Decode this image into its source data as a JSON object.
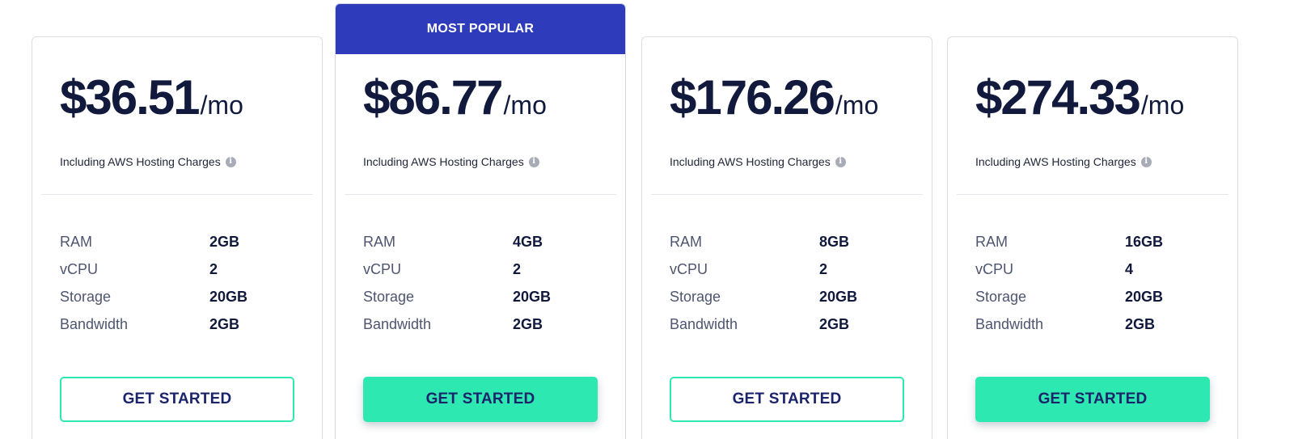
{
  "plans": [
    {
      "price": "$36.51",
      "period": "/mo",
      "note": "Including AWS Hosting Charges",
      "specs": [
        {
          "label": "RAM",
          "value": "2GB"
        },
        {
          "label": "vCPU",
          "value": "2"
        },
        {
          "label": "Storage",
          "value": "20GB"
        },
        {
          "label": "Bandwidth",
          "value": "2GB"
        }
      ],
      "cta": "GET STARTED"
    },
    {
      "banner": "MOST POPULAR",
      "price": "$86.77",
      "period": "/mo",
      "note": "Including AWS Hosting Charges",
      "specs": [
        {
          "label": "RAM",
          "value": "4GB"
        },
        {
          "label": "vCPU",
          "value": "2"
        },
        {
          "label": "Storage",
          "value": "20GB"
        },
        {
          "label": "Bandwidth",
          "value": "2GB"
        }
      ],
      "cta": "GET STARTED"
    },
    {
      "price": "$176.26",
      "period": "/mo",
      "note": "Including AWS Hosting Charges",
      "specs": [
        {
          "label": "RAM",
          "value": "8GB"
        },
        {
          "label": "vCPU",
          "value": "2"
        },
        {
          "label": "Storage",
          "value": "20GB"
        },
        {
          "label": "Bandwidth",
          "value": "2GB"
        }
      ],
      "cta": "GET STARTED"
    },
    {
      "price": "$274.33",
      "period": "/mo",
      "note": "Including AWS Hosting Charges",
      "specs": [
        {
          "label": "RAM",
          "value": "16GB"
        },
        {
          "label": "vCPU",
          "value": "4"
        },
        {
          "label": "Storage",
          "value": "20GB"
        },
        {
          "label": "Bandwidth",
          "value": "2GB"
        }
      ],
      "cta": "GET STARTED"
    }
  ],
  "icons": {
    "info": "info-icon"
  },
  "colors": {
    "banner": "#2e3cbb",
    "accent": "#2ee8b1",
    "price_text": "#111a3d",
    "cta_text": "#1b246b"
  }
}
